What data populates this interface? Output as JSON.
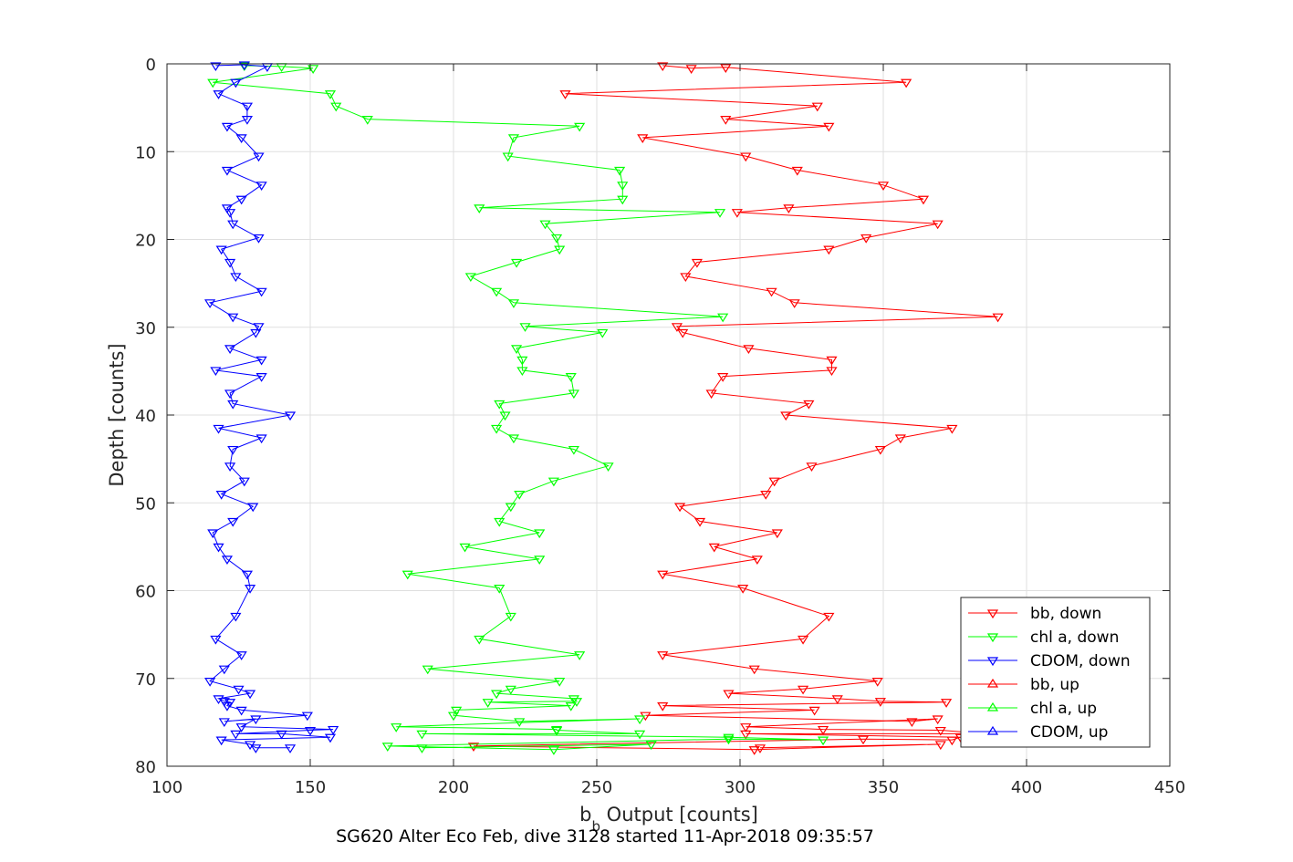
{
  "chart_data": {
    "type": "line",
    "xlabel_main": "b",
    "xlabel_sub": "b",
    "xlabel_rest": " Output [counts]",
    "ylabel": "Depth [counts]",
    "caption": "SG620 Alter Eco Feb, dive 3128 started 11-Apr-2018 09:35:57",
    "xlim": [
      100,
      450
    ],
    "ylim": [
      0,
      80
    ],
    "y_reversed": true,
    "xticks": [
      100,
      150,
      200,
      250,
      300,
      350,
      400,
      450
    ],
    "yticks": [
      0,
      10,
      20,
      30,
      40,
      50,
      60,
      70,
      80
    ],
    "grid": true,
    "legend_position": "bottom-right",
    "series": [
      {
        "name": "bb, down",
        "color": "#ff0000",
        "marker": "triangle-down",
        "points": [
          [
            273,
            0.2
          ],
          [
            283,
            0.5
          ],
          [
            295,
            0.4
          ],
          [
            358,
            2.1
          ],
          [
            239,
            3.4
          ],
          [
            327,
            4.8
          ],
          [
            295,
            6.3
          ],
          [
            331,
            7.1
          ],
          [
            266,
            8.4
          ],
          [
            302,
            10.5
          ],
          [
            320,
            12.1
          ],
          [
            350,
            13.8
          ],
          [
            364,
            15.4
          ],
          [
            317,
            16.4
          ],
          [
            299,
            16.9
          ],
          [
            369,
            18.2
          ],
          [
            344,
            19.8
          ],
          [
            331,
            21.1
          ],
          [
            285,
            22.6
          ],
          [
            281,
            24.2
          ],
          [
            311,
            25.9
          ],
          [
            319,
            27.2
          ],
          [
            390,
            28.8
          ],
          [
            278,
            29.9
          ],
          [
            280,
            30.6
          ],
          [
            303,
            32.4
          ],
          [
            332,
            33.7
          ],
          [
            332,
            34.9
          ],
          [
            294,
            35.6
          ],
          [
            290,
            37.5
          ],
          [
            324,
            38.7
          ],
          [
            316,
            40.0
          ],
          [
            374,
            41.5
          ],
          [
            356,
            42.6
          ],
          [
            349,
            43.9
          ],
          [
            325,
            45.8
          ],
          [
            312,
            47.5
          ],
          [
            309,
            49.0
          ],
          [
            279,
            50.4
          ],
          [
            286,
            52.1
          ],
          [
            313,
            53.4
          ],
          [
            291,
            55.0
          ],
          [
            306,
            56.4
          ],
          [
            273,
            58.1
          ],
          [
            301,
            59.7
          ],
          [
            331,
            62.9
          ],
          [
            322,
            65.5
          ],
          [
            273,
            67.3
          ],
          [
            305,
            68.9
          ],
          [
            348,
            70.3
          ],
          [
            322,
            71.2
          ],
          [
            296,
            71.7
          ],
          [
            334,
            72.3
          ],
          [
            349,
            72.6
          ],
          [
            372,
            72.7
          ],
          [
            273,
            73.1
          ],
          [
            326,
            73.6
          ],
          [
            267,
            74.2
          ],
          [
            360,
            74.9
          ],
          [
            369,
            74.6
          ],
          [
            302,
            75.5
          ],
          [
            329,
            75.8
          ],
          [
            370,
            75.9
          ],
          [
            386,
            76.3
          ],
          [
            302,
            76.3
          ],
          [
            377,
            76.7
          ],
          [
            374,
            77.0
          ],
          [
            343,
            76.9
          ],
          [
            207,
            77.7
          ],
          [
            305,
            78.1
          ],
          [
            370,
            77.5
          ],
          [
            307,
            77.9
          ]
        ]
      },
      {
        "name": "chl a, down",
        "color": "#00ff00",
        "marker": "triangle-down",
        "points": [
          [
            127,
            0.2
          ],
          [
            140,
            0.3
          ],
          [
            151,
            0.5
          ],
          [
            116,
            2.1
          ],
          [
            157,
            3.4
          ],
          [
            159,
            4.8
          ],
          [
            170,
            6.3
          ],
          [
            244,
            7.1
          ],
          [
            221,
            8.4
          ],
          [
            219,
            10.5
          ],
          [
            258,
            12.1
          ],
          [
            259,
            13.8
          ],
          [
            259,
            15.4
          ],
          [
            209,
            16.4
          ],
          [
            293,
            16.9
          ],
          [
            232,
            18.2
          ],
          [
            236,
            19.8
          ],
          [
            237,
            21.1
          ],
          [
            222,
            22.6
          ],
          [
            206,
            24.2
          ],
          [
            215,
            25.9
          ],
          [
            221,
            27.2
          ],
          [
            294,
            28.8
          ],
          [
            225,
            29.9
          ],
          [
            252,
            30.6
          ],
          [
            222,
            32.4
          ],
          [
            224,
            33.7
          ],
          [
            224,
            34.9
          ],
          [
            241,
            35.6
          ],
          [
            242,
            37.5
          ],
          [
            216,
            38.7
          ],
          [
            218,
            40.0
          ],
          [
            215,
            41.5
          ],
          [
            221,
            42.6
          ],
          [
            242,
            43.9
          ],
          [
            254,
            45.8
          ],
          [
            235,
            47.5
          ],
          [
            223,
            49.0
          ],
          [
            220,
            50.4
          ],
          [
            216,
            52.1
          ],
          [
            230,
            53.4
          ],
          [
            204,
            55.0
          ],
          [
            230,
            56.4
          ],
          [
            184,
            58.1
          ],
          [
            216,
            59.7
          ],
          [
            220,
            62.9
          ],
          [
            209,
            65.5
          ],
          [
            244,
            67.3
          ],
          [
            191,
            68.9
          ],
          [
            237,
            70.3
          ],
          [
            220,
            71.2
          ],
          [
            215,
            71.7
          ],
          [
            242,
            72.3
          ],
          [
            243,
            72.6
          ],
          [
            212,
            72.7
          ],
          [
            241,
            73.1
          ],
          [
            201,
            73.6
          ],
          [
            200,
            74.2
          ],
          [
            223,
            74.9
          ],
          [
            265,
            74.6
          ],
          [
            180,
            75.5
          ],
          [
            236,
            75.8
          ],
          [
            236,
            75.9
          ],
          [
            265,
            76.3
          ],
          [
            189,
            76.3
          ],
          [
            296,
            76.7
          ],
          [
            329,
            77.0
          ],
          [
            296,
            76.9
          ],
          [
            177,
            77.7
          ],
          [
            235,
            78.1
          ],
          [
            269,
            77.5
          ],
          [
            189,
            77.9
          ]
        ]
      },
      {
        "name": "CDOM, down",
        "color": "#0000ff",
        "marker": "triangle-down",
        "points": [
          [
            117,
            0.2
          ],
          [
            127,
            0.1
          ],
          [
            135,
            0.3
          ],
          [
            124,
            2.1
          ],
          [
            118,
            3.4
          ],
          [
            128,
            4.8
          ],
          [
            128,
            6.3
          ],
          [
            121,
            7.1
          ],
          [
            126,
            8.4
          ],
          [
            132,
            10.5
          ],
          [
            121,
            12.1
          ],
          [
            133,
            13.8
          ],
          [
            126,
            15.4
          ],
          [
            121,
            16.4
          ],
          [
            122,
            16.9
          ],
          [
            123,
            18.2
          ],
          [
            132,
            19.8
          ],
          [
            119,
            21.1
          ],
          [
            122,
            22.6
          ],
          [
            124,
            24.2
          ],
          [
            133,
            25.9
          ],
          [
            115,
            27.2
          ],
          [
            123,
            28.8
          ],
          [
            132,
            29.9
          ],
          [
            131,
            30.6
          ],
          [
            122,
            32.4
          ],
          [
            133,
            33.7
          ],
          [
            117,
            34.9
          ],
          [
            133,
            35.6
          ],
          [
            122,
            37.5
          ],
          [
            123,
            38.7
          ],
          [
            143,
            40.0
          ],
          [
            118,
            41.5
          ],
          [
            133,
            42.6
          ],
          [
            123,
            43.9
          ],
          [
            122,
            45.8
          ],
          [
            127,
            47.5
          ],
          [
            119,
            49.0
          ],
          [
            130,
            50.4
          ],
          [
            123,
            52.1
          ],
          [
            116,
            53.4
          ],
          [
            118,
            55.0
          ],
          [
            121,
            56.4
          ],
          [
            128,
            58.1
          ],
          [
            129,
            59.7
          ],
          [
            124,
            62.9
          ],
          [
            117,
            65.5
          ],
          [
            126,
            67.3
          ],
          [
            120,
            68.9
          ],
          [
            115,
            70.3
          ],
          [
            125,
            71.2
          ],
          [
            129,
            71.7
          ],
          [
            118,
            72.3
          ],
          [
            120,
            72.6
          ],
          [
            122,
            72.7
          ],
          [
            121,
            73.1
          ],
          [
            126,
            73.6
          ],
          [
            149,
            74.2
          ],
          [
            120,
            74.9
          ],
          [
            131,
            74.6
          ],
          [
            126,
            75.5
          ],
          [
            158,
            75.8
          ],
          [
            150,
            75.9
          ],
          [
            124,
            76.3
          ],
          [
            140,
            76.3
          ],
          [
            157,
            76.7
          ],
          [
            119,
            77.0
          ],
          [
            129,
            77.5
          ],
          [
            131,
            77.9
          ],
          [
            143,
            77.9
          ]
        ]
      },
      {
        "name": "bb, up",
        "color": "#ff0000",
        "marker": "triangle-up",
        "points": []
      },
      {
        "name": "chl a, up",
        "color": "#00ff00",
        "marker": "triangle-up",
        "points": []
      },
      {
        "name": "CDOM, up",
        "color": "#0000ff",
        "marker": "triangle-up",
        "points": []
      }
    ]
  }
}
